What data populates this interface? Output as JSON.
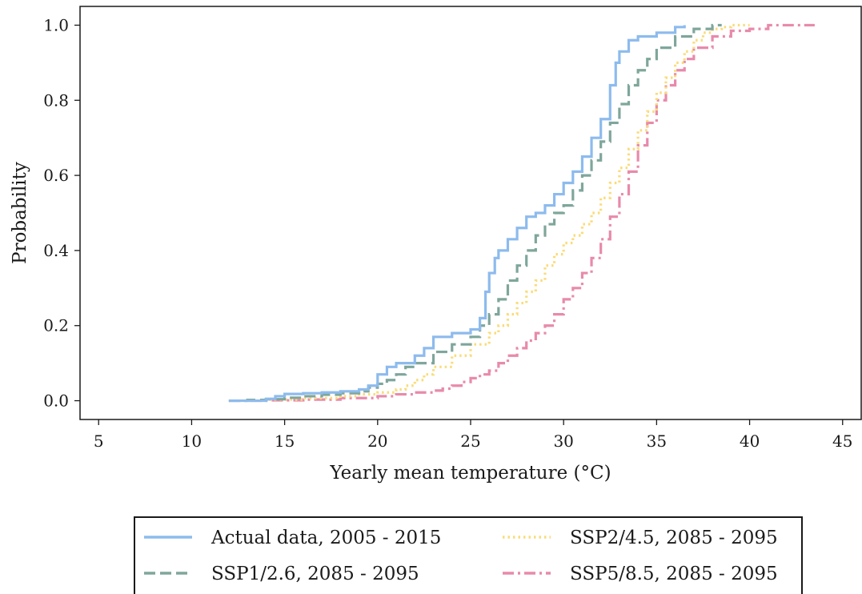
{
  "chart_data": {
    "type": "line",
    "step": true,
    "xlabel": "Yearly mean temperature (°C)",
    "ylabel": "Probability",
    "xlim": [
      4,
      46
    ],
    "ylim": [
      -0.05,
      1.05
    ],
    "xticks": [
      5,
      10,
      15,
      20,
      25,
      30,
      35,
      40,
      45
    ],
    "yticks": [
      0.0,
      0.2,
      0.4,
      0.6,
      0.8,
      1.0
    ],
    "xtick_labels": [
      "5",
      "10",
      "15",
      "20",
      "25",
      "30",
      "35",
      "40",
      "45"
    ],
    "ytick_labels": [
      "0.0",
      "0.2",
      "0.4",
      "0.6",
      "0.8",
      "1.0"
    ],
    "grid": false,
    "legend_position": "below",
    "series": [
      {
        "name": "Actual data, 2005 - 2015",
        "color": "#8dbbed",
        "dash": "solid",
        "x": [
          12.0,
          14.0,
          14.5,
          15.0,
          16.0,
          17.0,
          18.0,
          19.0,
          19.5,
          20.0,
          20.5,
          21.0,
          22.0,
          22.5,
          23.0,
          24.0,
          25.0,
          25.5,
          25.8,
          26.0,
          26.3,
          26.5,
          27.0,
          27.5,
          28.0,
          28.5,
          29.0,
          29.5,
          30.0,
          30.5,
          31.0,
          31.5,
          32.0,
          32.5,
          32.8,
          33.0,
          33.5,
          34.0,
          35.0,
          36.0,
          36.5
        ],
        "y": [
          0.0,
          0.005,
          0.012,
          0.018,
          0.02,
          0.022,
          0.025,
          0.03,
          0.04,
          0.07,
          0.09,
          0.1,
          0.12,
          0.14,
          0.17,
          0.18,
          0.19,
          0.22,
          0.29,
          0.34,
          0.38,
          0.4,
          0.43,
          0.46,
          0.49,
          0.5,
          0.52,
          0.55,
          0.58,
          0.61,
          0.65,
          0.7,
          0.75,
          0.84,
          0.9,
          0.93,
          0.96,
          0.97,
          0.98,
          0.995,
          1.0
        ]
      },
      {
        "name": "SSP1/2.6, 2085 - 2095",
        "color": "#7fa69b",
        "dash": "dashed",
        "x": [
          12.0,
          13.0,
          14.0,
          15.0,
          16.0,
          17.0,
          18.0,
          19.0,
          19.5,
          20.0,
          20.5,
          21.0,
          21.5,
          22.0,
          23.0,
          24.0,
          25.0,
          25.5,
          26.0,
          26.5,
          27.0,
          27.5,
          28.0,
          28.5,
          29.0,
          29.5,
          30.0,
          30.5,
          31.0,
          31.5,
          32.0,
          32.5,
          33.0,
          33.5,
          34.0,
          34.5,
          35.0,
          36.0,
          37.0,
          38.0,
          38.5
        ],
        "y": [
          0.0,
          0.002,
          0.004,
          0.008,
          0.012,
          0.016,
          0.02,
          0.025,
          0.035,
          0.045,
          0.055,
          0.07,
          0.09,
          0.1,
          0.13,
          0.15,
          0.17,
          0.2,
          0.23,
          0.27,
          0.32,
          0.36,
          0.4,
          0.44,
          0.47,
          0.5,
          0.52,
          0.56,
          0.6,
          0.64,
          0.69,
          0.74,
          0.79,
          0.84,
          0.88,
          0.91,
          0.94,
          0.97,
          0.99,
          1.0,
          1.0
        ]
      },
      {
        "name": "SSP2/4.5, 2085 - 2095",
        "color": "#f9dc7a",
        "dash": "dotted",
        "x": [
          12.0,
          14.0,
          16.0,
          18.0,
          19.0,
          20.0,
          21.0,
          21.5,
          22.0,
          22.5,
          23.0,
          24.0,
          25.0,
          26.0,
          26.5,
          27.0,
          27.5,
          28.0,
          28.5,
          29.0,
          29.5,
          30.0,
          30.5,
          31.0,
          31.5,
          32.0,
          32.5,
          33.0,
          33.5,
          34.0,
          34.5,
          35.0,
          35.5,
          36.0,
          36.5,
          37.0,
          37.5,
          38.0,
          38.5,
          39.0,
          40.0
        ],
        "y": [
          0.0,
          0.003,
          0.007,
          0.012,
          0.017,
          0.022,
          0.03,
          0.04,
          0.055,
          0.07,
          0.09,
          0.12,
          0.15,
          0.18,
          0.2,
          0.23,
          0.26,
          0.29,
          0.32,
          0.36,
          0.39,
          0.42,
          0.44,
          0.47,
          0.5,
          0.54,
          0.58,
          0.62,
          0.67,
          0.72,
          0.77,
          0.82,
          0.86,
          0.9,
          0.93,
          0.96,
          0.98,
          0.99,
          0.995,
          1.0,
          1.0
        ]
      },
      {
        "name": "SSP5/8.5, 2085 - 2095",
        "color": "#e88aab",
        "dash": "dashdot",
        "x": [
          12.0,
          14.0,
          16.0,
          18.0,
          20.0,
          21.0,
          22.0,
          23.0,
          23.5,
          24.0,
          24.5,
          25.0,
          25.5,
          26.0,
          26.5,
          27.0,
          27.5,
          28.0,
          28.5,
          29.0,
          29.5,
          30.0,
          30.5,
          31.0,
          31.5,
          32.0,
          32.5,
          33.0,
          33.5,
          34.0,
          34.5,
          35.0,
          35.5,
          36.0,
          36.5,
          37.0,
          38.0,
          39.0,
          40.0,
          41.0,
          43.5
        ],
        "y": [
          0.0,
          0.001,
          0.003,
          0.007,
          0.012,
          0.017,
          0.022,
          0.027,
          0.032,
          0.04,
          0.05,
          0.06,
          0.07,
          0.08,
          0.1,
          0.12,
          0.14,
          0.16,
          0.18,
          0.2,
          0.23,
          0.27,
          0.3,
          0.34,
          0.38,
          0.43,
          0.49,
          0.55,
          0.61,
          0.68,
          0.74,
          0.8,
          0.84,
          0.88,
          0.91,
          0.94,
          0.97,
          0.985,
          0.99,
          1.0,
          1.0
        ]
      }
    ]
  }
}
